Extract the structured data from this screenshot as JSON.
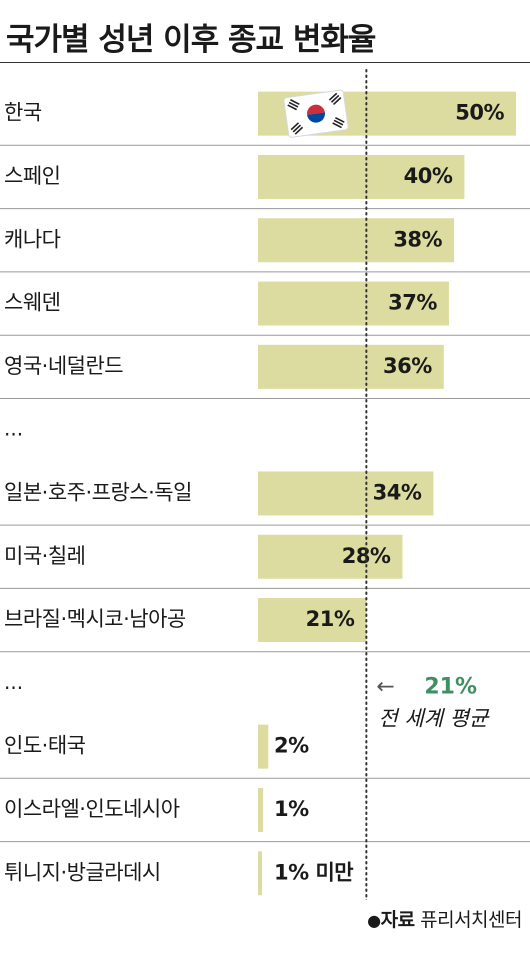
{
  "title": "국가별 성년 이후 종교 변화율",
  "source": {
    "bullet": "●",
    "label": "자료",
    "name": "퓨리서치센터"
  },
  "colors": {
    "bar": "#dcdca0",
    "avg_value": "#3f8f63",
    "rule": "#9a9a9a",
    "text": "#1a1a1a"
  },
  "flag_icon": "korea-flag-icon",
  "chart_data": {
    "type": "bar",
    "orientation": "horizontal",
    "xlim": [
      0,
      50
    ],
    "rows": [
      {
        "label": "한국",
        "value": 50,
        "display": "50%",
        "flag": true
      },
      {
        "label": "스페인",
        "value": 40,
        "display": "40%"
      },
      {
        "label": "캐나다",
        "value": 38,
        "display": "38%"
      },
      {
        "label": "스웨덴",
        "value": 37,
        "display": "37%"
      },
      {
        "label": "영국·네덜란드",
        "value": 36,
        "display": "36%"
      },
      {
        "label": "...",
        "ellipsis": true
      },
      {
        "label": "일본·호주·프랑스·독일",
        "value": 34,
        "display": "34%"
      },
      {
        "label": "미국·칠레",
        "value": 28,
        "display": "28%"
      },
      {
        "label": "브라질·멕시코·남아공",
        "value": 21,
        "display": "21%"
      },
      {
        "label": "...",
        "ellipsis": true
      },
      {
        "label": "인도·태국",
        "value": 2,
        "display": "2%"
      },
      {
        "label": "이스라엘·인도네시아",
        "value": 1,
        "display": "1%"
      },
      {
        "label": "튀니지·방글라데시",
        "value": 0.5,
        "display": "1% 미만"
      }
    ],
    "reference": {
      "value": 21,
      "value_label": "21%",
      "label": "전 세계 평균",
      "arrow": "←"
    }
  }
}
